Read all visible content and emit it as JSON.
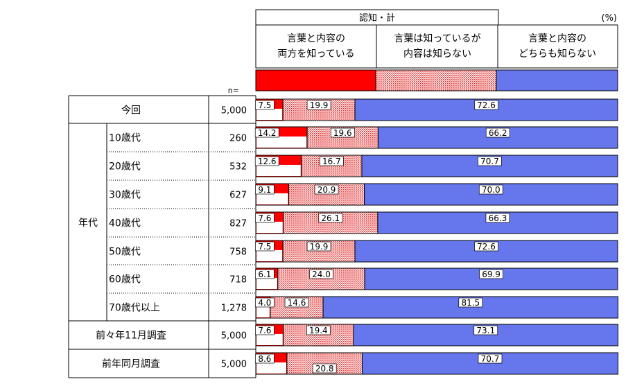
{
  "header": {
    "group_title": "認知・計",
    "unit": "(%)",
    "n_label": "n=",
    "columns": [
      {
        "line1": "言葉と内容の",
        "line2": "両方を知っている"
      },
      {
        "line1": "言葉は知っているが",
        "line2": "内容は知らない"
      },
      {
        "line1": "言葉と内容の",
        "line2": "どちらも知らない"
      }
    ]
  },
  "row_group_label": "年代",
  "colors": {
    "both_known": "#ff0000",
    "word_only": "#f4b6b6",
    "neither": "#6677ee",
    "dot": "#e03030"
  },
  "chart_data": {
    "type": "bar",
    "stacked": true,
    "orientation": "horizontal",
    "xlim": [
      0,
      100
    ],
    "series": [
      {
        "name": "言葉と内容の両方を知っている",
        "values": [
          7.5,
          14.2,
          12.6,
          9.1,
          7.6,
          7.5,
          6.1,
          4.0,
          7.6,
          8.6
        ]
      },
      {
        "name": "言葉は知っているが内容は知らない",
        "values": [
          19.9,
          19.6,
          16.7,
          20.9,
          26.1,
          19.9,
          24.0,
          14.6,
          19.4,
          20.8
        ]
      },
      {
        "name": "言葉と内容のどちらも知らない",
        "values": [
          72.6,
          66.2,
          70.7,
          70.0,
          66.3,
          72.6,
          69.9,
          81.5,
          73.1,
          70.7
        ]
      }
    ],
    "categories": [
      "今回",
      "10歳代",
      "20歳代",
      "30歳代",
      "40歳代",
      "50歳代",
      "60歳代",
      "70歳代以上",
      "前々年11月調査",
      "前年同月調査"
    ],
    "n": [
      "5,000",
      "260",
      "532",
      "627",
      "827",
      "758",
      "718",
      "1,278",
      "5,000",
      "5,000"
    ]
  }
}
